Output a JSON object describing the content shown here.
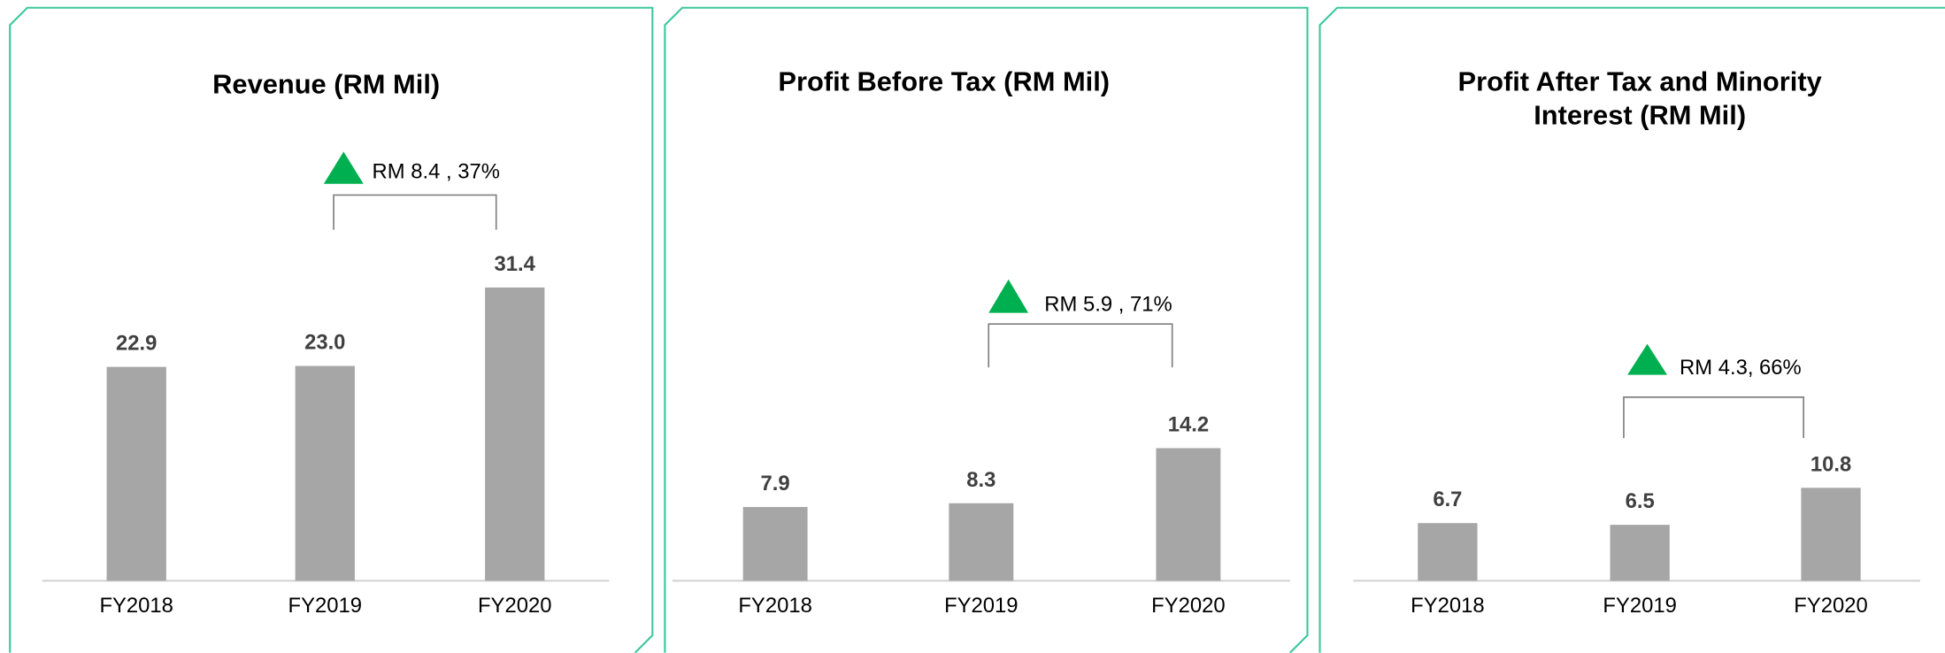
{
  "chart_data": [
    {
      "type": "bar",
      "title": "Revenue (RM Mil)",
      "categories": [
        "FY2018",
        "FY2019",
        "FY2020"
      ],
      "values": [
        22.9,
        23.0,
        31.4
      ],
      "value_labels": [
        "22.9",
        "23.0",
        "31.4"
      ],
      "color": "#a6a6a6",
      "annotation": "RM 8.4 , 37%",
      "annotation_color": "#00b050"
    },
    {
      "type": "bar",
      "title": "Profit Before Tax (RM Mil)",
      "categories": [
        "FY2018",
        "FY2019",
        "FY2020"
      ],
      "values": [
        7.9,
        8.3,
        14.2
      ],
      "value_labels": [
        "7.9",
        "8.3",
        "14.2"
      ],
      "color": "#a6a6a6",
      "annotation": "RM 5.9 , 71%",
      "annotation_color": "#00b050"
    },
    {
      "type": "bar",
      "title": "Profit After Tax and Minority Interest (RM Mil)",
      "categories": [
        "FY2018",
        "FY2019",
        "FY2020"
      ],
      "values": [
        6.7,
        6.5,
        10.8
      ],
      "value_labels": [
        "6.7",
        "6.5",
        "10.8"
      ],
      "color": "#a6a6a6",
      "annotation": "RM 4.3, 66%",
      "annotation_color": "#00b050"
    }
  ]
}
